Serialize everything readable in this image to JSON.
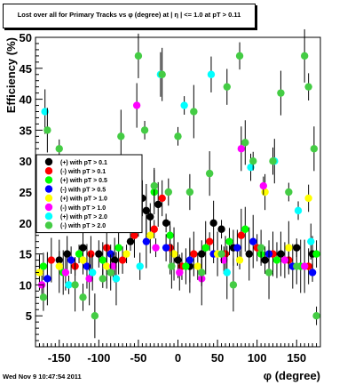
{
  "chart_data": {
    "type": "scatter",
    "title": "Lost over all for Primary Tracks vs φ (degree) at | η | <= 1.0 at pT > 0.11",
    "xlabel": "φ (degree)",
    "ylabel": "Efficiency (%)",
    "xlim": [
      -180,
      180
    ],
    "ylim": [
      0,
      50
    ],
    "x_ticks": [
      -150,
      -100,
      -50,
      0,
      50,
      100,
      150
    ],
    "y_ticks": [
      5,
      10,
      15,
      20,
      25,
      30,
      35,
      40,
      45,
      50
    ],
    "grid": false,
    "legend_position": "left-middle",
    "series": [
      {
        "name": "(+) with pT > 0.1",
        "color": "#000000",
        "points": [
          [
            -150,
            14
          ],
          [
            -140,
            15
          ],
          [
            -120,
            16
          ],
          [
            -100,
            15
          ],
          [
            -80,
            14
          ],
          [
            -60,
            17
          ],
          [
            -45,
            24
          ],
          [
            -40,
            22
          ],
          [
            -35,
            21
          ],
          [
            -25,
            23
          ],
          [
            -15,
            20
          ],
          [
            0,
            14
          ],
          [
            15,
            13
          ],
          [
            30,
            15
          ],
          [
            45,
            20
          ],
          [
            55,
            19
          ],
          [
            70,
            16
          ],
          [
            90,
            15
          ],
          [
            110,
            14
          ],
          [
            130,
            15
          ],
          [
            150,
            16
          ],
          [
            170,
            15
          ]
        ]
      },
      {
        "name": "(-) with pT > 0.1",
        "color": "#ff0000",
        "points": [
          [
            -160,
            14
          ],
          [
            -130,
            13
          ],
          [
            -110,
            15
          ],
          [
            -90,
            16
          ],
          [
            -70,
            14
          ],
          [
            -55,
            18
          ],
          [
            -30,
            19
          ],
          [
            -20,
            24
          ],
          [
            -10,
            16
          ],
          [
            5,
            13
          ],
          [
            20,
            15
          ],
          [
            40,
            17
          ],
          [
            60,
            15
          ],
          [
            80,
            18
          ],
          [
            100,
            16
          ],
          [
            120,
            15
          ],
          [
            140,
            14
          ],
          [
            165,
            13
          ]
        ]
      },
      {
        "name": "(+) with pT > 0.5",
        "color": "#00ff00",
        "points": [
          [
            -170,
            13
          ],
          [
            -145,
            12
          ],
          [
            -125,
            15
          ],
          [
            -95,
            14
          ],
          [
            -75,
            16
          ],
          [
            -50,
            20
          ],
          [
            -30,
            25
          ],
          [
            -10,
            18
          ],
          [
            10,
            13
          ],
          [
            35,
            16
          ],
          [
            65,
            17
          ],
          [
            85,
            19
          ],
          [
            105,
            15
          ],
          [
            125,
            14
          ],
          [
            155,
            13
          ],
          [
            175,
            15
          ]
        ]
      },
      {
        "name": "(-) with pT > 0.5",
        "color": "#0000ff",
        "points": [
          [
            -165,
            11
          ],
          [
            -135,
            14
          ],
          [
            -115,
            13
          ],
          [
            -85,
            15
          ],
          [
            -60,
            28
          ],
          [
            -40,
            17
          ],
          [
            -15,
            16
          ],
          [
            15,
            14
          ],
          [
            45,
            15
          ],
          [
            75,
            16
          ],
          [
            95,
            17
          ],
          [
            115,
            15
          ],
          [
            145,
            13
          ],
          [
            170,
            12
          ]
        ]
      },
      {
        "name": "(+) with pT > 1.0",
        "color": "#ffff00",
        "points": [
          [
            -175,
            12
          ],
          [
            -150,
            13
          ],
          [
            -120,
            14
          ],
          [
            -90,
            13
          ],
          [
            -65,
            15
          ],
          [
            -35,
            18
          ],
          [
            -5,
            15
          ],
          [
            25,
            13
          ],
          [
            50,
            15
          ],
          [
            78,
            14
          ],
          [
            110,
            25
          ],
          [
            140,
            16
          ],
          [
            165,
            24
          ]
        ]
      },
      {
        "name": "(-) with pT > 1.0",
        "color": "#ff00ff",
        "points": [
          [
            -172,
            10
          ],
          [
            -142,
            12
          ],
          [
            -112,
            11
          ],
          [
            -82,
            13
          ],
          [
            -52,
            39
          ],
          [
            -28,
            16
          ],
          [
            2,
            12
          ],
          [
            30,
            11
          ],
          [
            58,
            14
          ],
          [
            80,
            32
          ],
          [
            108,
            26
          ],
          [
            135,
            14
          ],
          [
            160,
            13
          ]
        ]
      },
      {
        "name": "(+) with pT > 2.0",
        "color": "#00ffff",
        "points": [
          [
            -168,
            38
          ],
          [
            -138,
            10
          ],
          [
            -108,
            12
          ],
          [
            -78,
            11
          ],
          [
            -48,
            13
          ],
          [
            -22,
            44
          ],
          [
            8,
            39
          ],
          [
            42,
            44
          ],
          [
            62,
            12
          ],
          [
            92,
            29
          ],
          [
            122,
            30
          ],
          [
            152,
            22
          ],
          [
            168,
            17
          ]
        ]
      },
      {
        "name": "(-) with pT > 2.0",
        "color": "#44cc44",
        "points": [
          [
            -170,
            8
          ],
          [
            -165,
            35
          ],
          [
            -150,
            32
          ],
          [
            -140,
            27
          ],
          [
            -130,
            10
          ],
          [
            -120,
            8
          ],
          [
            -105,
            5
          ],
          [
            -95,
            11
          ],
          [
            -85,
            12
          ],
          [
            -72,
            34
          ],
          [
            -60,
            22
          ],
          [
            -50,
            47
          ],
          [
            -42,
            35
          ],
          [
            -30,
            26
          ],
          [
            -20,
            44
          ],
          [
            -12,
            25
          ],
          [
            -8,
            13
          ],
          [
            0,
            34
          ],
          [
            15,
            25
          ],
          [
            20,
            38
          ],
          [
            30,
            12
          ],
          [
            40,
            28
          ],
          [
            55,
            15
          ],
          [
            62,
            42
          ],
          [
            70,
            10
          ],
          [
            78,
            47
          ],
          [
            85,
            33
          ],
          [
            95,
            30
          ],
          [
            105,
            16
          ],
          [
            115,
            12
          ],
          [
            120,
            30
          ],
          [
            130,
            41
          ],
          [
            140,
            25
          ],
          [
            150,
            13
          ],
          [
            160,
            47
          ],
          [
            165,
            42
          ],
          [
            172,
            32
          ],
          [
            175,
            5
          ]
        ]
      }
    ],
    "footer": "Wed Nov  9 10:47:54 2011"
  }
}
